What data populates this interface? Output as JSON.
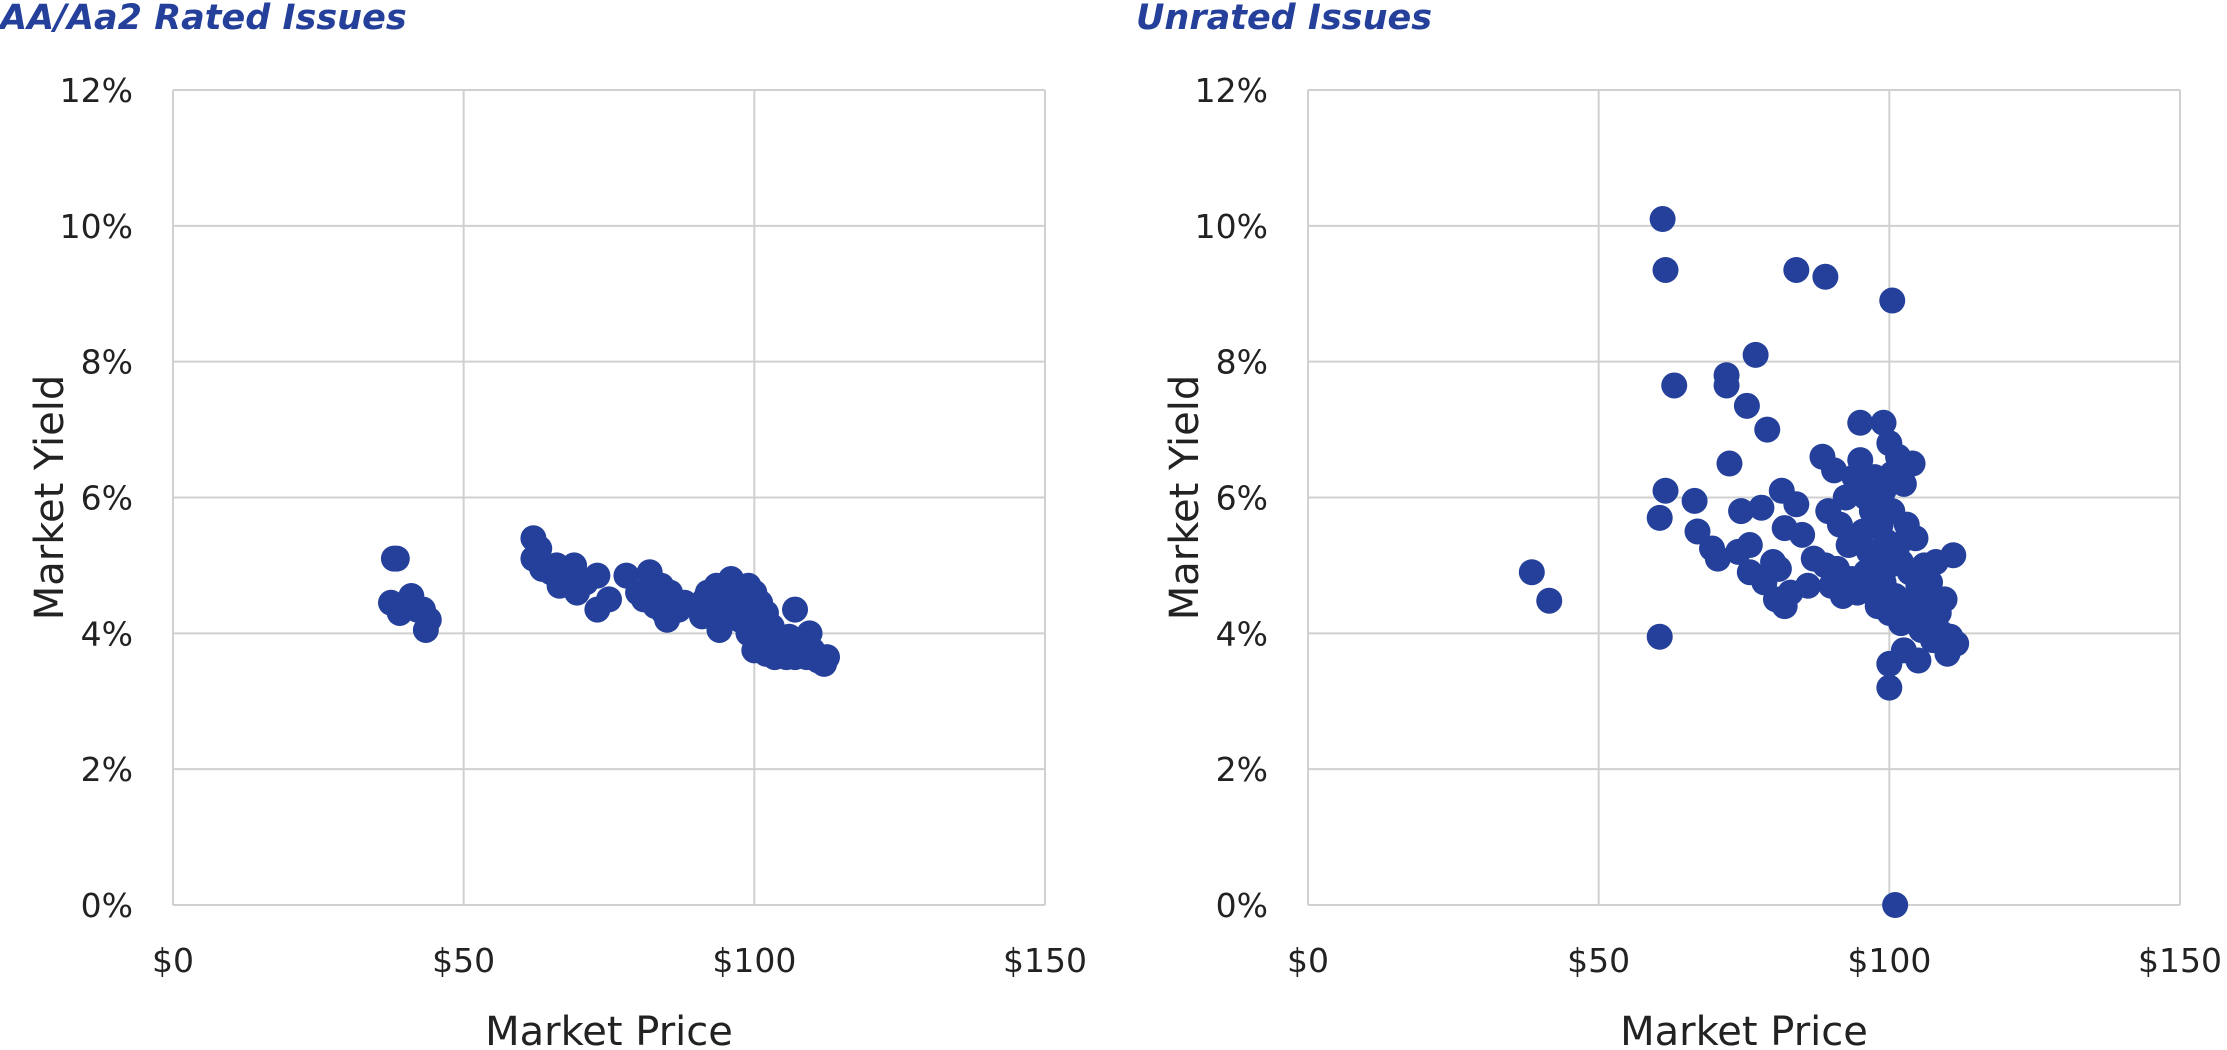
{
  "chart_data": [
    {
      "type": "scatter",
      "title": "AA/Aa2 Rated Issues",
      "xlabel": "Market Price",
      "ylabel": "Market Yield",
      "xlim": [
        0,
        150
      ],
      "ylim": [
        0,
        12
      ],
      "x_ticks": [
        "$0",
        "$50",
        "$100",
        "$150"
      ],
      "y_ticks": [
        "0%",
        "2%",
        "4%",
        "6%",
        "8%",
        "10%",
        "12%"
      ],
      "grid": true,
      "points": [
        [
          38,
          5.1
        ],
        [
          38.5,
          5.1
        ],
        [
          37.5,
          4.45
        ],
        [
          39,
          4.3
        ],
        [
          41,
          4.55
        ],
        [
          42,
          4.35
        ],
        [
          43,
          4.35
        ],
        [
          44,
          4.2
        ],
        [
          43.5,
          4.05
        ],
        [
          62,
          5.4
        ],
        [
          62,
          5.1
        ],
        [
          63,
          5.25
        ],
        [
          63.5,
          4.95
        ],
        [
          65,
          4.9
        ],
        [
          66,
          5.0
        ],
        [
          66.5,
          4.7
        ],
        [
          68,
          4.85
        ],
        [
          69,
          5.0
        ],
        [
          69.5,
          4.6
        ],
        [
          70,
          4.8
        ],
        [
          71,
          4.75
        ],
        [
          73,
          4.85
        ],
        [
          73,
          4.35
        ],
        [
          75,
          4.5
        ],
        [
          78,
          4.85
        ],
        [
          80,
          4.6
        ],
        [
          81,
          4.5
        ],
        [
          82,
          4.9
        ],
        [
          82.5,
          4.55
        ],
        [
          83,
          4.4
        ],
        [
          84,
          4.7
        ],
        [
          84.5,
          4.3
        ],
        [
          85,
          4.2
        ],
        [
          85.5,
          4.6
        ],
        [
          86,
          4.4
        ],
        [
          87,
          4.35
        ],
        [
          88,
          4.45
        ],
        [
          90,
          4.4
        ],
        [
          91,
          4.25
        ],
        [
          91.5,
          4.5
        ],
        [
          92,
          4.6
        ],
        [
          93,
          4.3
        ],
        [
          93.5,
          4.7
        ],
        [
          94,
          4.05
        ],
        [
          94.5,
          4.5
        ],
        [
          95,
          4.6
        ],
        [
          95.5,
          4.3
        ],
        [
          96,
          4.8
        ],
        [
          96.5,
          4.4
        ],
        [
          97,
          4.55
        ],
        [
          97.5,
          4.2
        ],
        [
          98,
          4.45
        ],
        [
          98.5,
          4.35
        ],
        [
          99,
          4.7
        ],
        [
          99,
          4.0
        ],
        [
          99.5,
          4.3
        ],
        [
          100,
          4.6
        ],
        [
          100,
          3.75
        ],
        [
          100.5,
          4.1
        ],
        [
          101,
          4.45
        ],
        [
          101,
          3.85
        ],
        [
          101.5,
          4.0
        ],
        [
          102,
          4.3
        ],
        [
          102,
          3.7
        ],
        [
          102.5,
          3.9
        ],
        [
          103,
          4.1
        ],
        [
          103,
          3.8
        ],
        [
          103.5,
          3.65
        ],
        [
          104,
          3.95
        ],
        [
          104.5,
          3.75
        ],
        [
          105,
          3.85
        ],
        [
          105.5,
          3.65
        ],
        [
          106,
          3.95
        ],
        [
          106.5,
          3.75
        ],
        [
          107,
          4.35
        ],
        [
          107,
          3.65
        ],
        [
          107.5,
          3.85
        ],
        [
          108,
          3.7
        ],
        [
          108.5,
          3.9
        ],
        [
          109,
          3.65
        ],
        [
          109.5,
          4.0
        ],
        [
          110,
          3.75
        ],
        [
          111,
          3.6
        ],
        [
          112,
          3.55
        ],
        [
          112.5,
          3.65
        ]
      ]
    },
    {
      "type": "scatter",
      "title": "Unrated Issues",
      "xlabel": "Market Price",
      "ylabel": "Market Yield",
      "xlim": [
        0,
        150
      ],
      "ylim": [
        0,
        12
      ],
      "x_ticks": [
        "$0",
        "$50",
        "$100",
        "$150"
      ],
      "y_ticks": [
        "0%",
        "2%",
        "4%",
        "6%",
        "8%",
        "10%",
        "12%"
      ],
      "grid": true,
      "points": [
        [
          38.5,
          4.9
        ],
        [
          41.5,
          4.48
        ],
        [
          60.5,
          5.7
        ],
        [
          60.5,
          3.95
        ],
        [
          61,
          10.1
        ],
        [
          61.5,
          9.35
        ],
        [
          61.5,
          6.1
        ],
        [
          63,
          7.65
        ],
        [
          66.5,
          5.95
        ],
        [
          67,
          5.5
        ],
        [
          69.5,
          5.25
        ],
        [
          70.5,
          5.1
        ],
        [
          72,
          7.8
        ],
        [
          72,
          7.65
        ],
        [
          72.5,
          6.5
        ],
        [
          74,
          5.2
        ],
        [
          74.5,
          5.8
        ],
        [
          75.5,
          7.35
        ],
        [
          76,
          5.3
        ],
        [
          76,
          4.9
        ],
        [
          77,
          8.1
        ],
        [
          78,
          5.85
        ],
        [
          78.5,
          4.75
        ],
        [
          79,
          7.0
        ],
        [
          80,
          5.05
        ],
        [
          80.5,
          4.5
        ],
        [
          81,
          4.95
        ],
        [
          81.5,
          6.1
        ],
        [
          82,
          4.4
        ],
        [
          82,
          5.55
        ],
        [
          83,
          4.6
        ],
        [
          84,
          9.35
        ],
        [
          84,
          5.9
        ],
        [
          85,
          5.45
        ],
        [
          86,
          4.7
        ],
        [
          87,
          5.1
        ],
        [
          88.5,
          6.6
        ],
        [
          89,
          9.25
        ],
        [
          89,
          5.0
        ],
        [
          89.5,
          5.8
        ],
        [
          90,
          4.7
        ],
        [
          90.5,
          6.4
        ],
        [
          91,
          4.95
        ],
        [
          91.5,
          5.6
        ],
        [
          92,
          4.55
        ],
        [
          92.5,
          6.0
        ],
        [
          93,
          5.3
        ],
        [
          93.5,
          4.8
        ],
        [
          94,
          6.3
        ],
        [
          94.5,
          4.6
        ],
        [
          95,
          7.1
        ],
        [
          95,
          6.55
        ],
        [
          95.5,
          5.5
        ],
        [
          96,
          4.9
        ],
        [
          96,
          6.0
        ],
        [
          96.5,
          5.2
        ],
        [
          97,
          4.6
        ],
        [
          97,
          5.8
        ],
        [
          97.5,
          6.3
        ],
        [
          98,
          4.4
        ],
        [
          98,
          5.0
        ],
        [
          98.5,
          5.6
        ],
        [
          99,
          7.1
        ],
        [
          99,
          4.75
        ],
        [
          99,
          6.1
        ],
        [
          99.5,
          5.35
        ],
        [
          100,
          6.8
        ],
        [
          100,
          4.3
        ],
        [
          100,
          5.0
        ],
        [
          100,
          3.55
        ],
        [
          100,
          3.2
        ],
        [
          100.5,
          5.8
        ],
        [
          100.5,
          8.9
        ],
        [
          100.5,
          6.35
        ],
        [
          101,
          4.55
        ],
        [
          101,
          0.0
        ],
        [
          101.5,
          5.3
        ],
        [
          101.5,
          6.6
        ],
        [
          102,
          4.15
        ],
        [
          102,
          5.05
        ],
        [
          102.5,
          6.2
        ],
        [
          102.5,
          3.75
        ],
        [
          103,
          5.6
        ],
        [
          103,
          4.4
        ],
        [
          103.5,
          4.9
        ],
        [
          104,
          6.5
        ],
        [
          104,
          4.2
        ],
        [
          104.5,
          5.4
        ],
        [
          105,
          3.6
        ],
        [
          105,
          4.7
        ],
        [
          105.5,
          4.05
        ],
        [
          106,
          5.0
        ],
        [
          106.5,
          4.4
        ],
        [
          107,
          4.75
        ],
        [
          107.5,
          3.9
        ],
        [
          108,
          5.05
        ],
        [
          108.5,
          4.3
        ],
        [
          109,
          4.0
        ],
        [
          109.5,
          4.5
        ],
        [
          110,
          3.7
        ],
        [
          110.5,
          3.95
        ],
        [
          111,
          5.15
        ],
        [
          111.5,
          3.85
        ]
      ]
    }
  ]
}
